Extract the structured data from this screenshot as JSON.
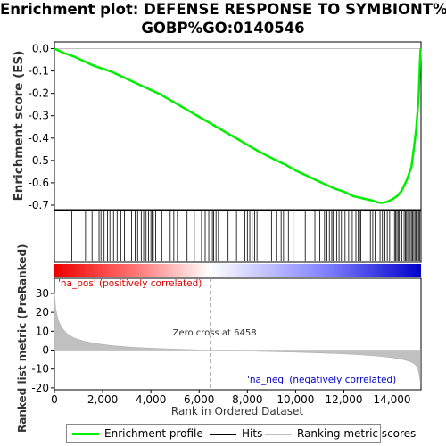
{
  "chart_data": {
    "type": "line",
    "title_line1": "Enrichment plot: DEFENSE RESPONSE TO SYMBIONT%",
    "title_line2": "GOBP%GO:0140546",
    "es_panel": {
      "ylabel": "Enrichment score (ES)",
      "ylim": [
        -0.72,
        0.03
      ],
      "yticks": [
        "0.0",
        "-0.1",
        "-0.2",
        "-0.3",
        "-0.4",
        "-0.5",
        "-0.6",
        "-0.7"
      ],
      "ytick_values": [
        0.0,
        -0.1,
        -0.2,
        -0.3,
        -0.4,
        -0.5,
        -0.6,
        -0.7
      ],
      "series": [
        {
          "name": "Enrichment profile",
          "color": "#00ee00",
          "x": [
            0,
            400,
            800,
            1200,
            1600,
            2000,
            2400,
            2800,
            3200,
            3600,
            4000,
            4400,
            4800,
            5200,
            5600,
            6000,
            6400,
            6800,
            7200,
            7600,
            8000,
            8400,
            8800,
            9200,
            9600,
            10000,
            10400,
            10800,
            11200,
            11600,
            12000,
            12400,
            12600,
            12800,
            13200,
            13400,
            13600,
            13800,
            14000,
            14200,
            14400,
            14600,
            14800,
            14900,
            15000,
            15100,
            15150,
            15180
          ],
          "y": [
            0.0,
            -0.02,
            -0.035,
            -0.055,
            -0.075,
            -0.09,
            -0.105,
            -0.125,
            -0.145,
            -0.165,
            -0.185,
            -0.205,
            -0.23,
            -0.255,
            -0.28,
            -0.305,
            -0.33,
            -0.355,
            -0.38,
            -0.405,
            -0.43,
            -0.455,
            -0.478,
            -0.5,
            -0.52,
            -0.545,
            -0.565,
            -0.585,
            -0.605,
            -0.625,
            -0.64,
            -0.66,
            -0.665,
            -0.67,
            -0.68,
            -0.688,
            -0.69,
            -0.685,
            -0.675,
            -0.66,
            -0.635,
            -0.59,
            -0.53,
            -0.45,
            -0.36,
            -0.22,
            -0.08,
            0.0
          ]
        }
      ]
    },
    "hits": {
      "name": "Hits",
      "positions": [
        720,
        1290,
        1560,
        1850,
        1930,
        2060,
        2200,
        2300,
        2450,
        2600,
        2750,
        2900,
        3050,
        3200,
        3350,
        3450,
        3600,
        3700,
        3800,
        3900,
        4000,
        4050,
        4100,
        4200,
        4450,
        4800,
        4950,
        5100,
        5500,
        5800,
        6100,
        6250,
        6400,
        6550,
        6600,
        6700,
        6800,
        7200,
        7550,
        7900,
        8000,
        8100,
        8200,
        8300,
        8400,
        9000,
        9200,
        9400,
        9500,
        9700,
        9900,
        10400,
        10600,
        10800,
        11000,
        11200,
        11300,
        11400,
        11500,
        11550,
        11700,
        11800,
        11900,
        12050,
        12200,
        12350,
        12500,
        12600,
        12650,
        12700,
        13000,
        13100,
        13200,
        13300,
        13500,
        13600,
        13700,
        13800,
        13900,
        14000,
        14100,
        14150,
        14200,
        14250,
        14300,
        14400,
        14500,
        14550,
        14600,
        14650,
        14700,
        14750,
        14800,
        14850,
        14900,
        14950,
        15000,
        15050,
        15100,
        15150
      ]
    },
    "rank_panel": {
      "ylabel": "Ranked list metric (PreRanked)",
      "ylim": [
        -21,
        38
      ],
      "yticks": [
        "30",
        "20",
        "10",
        "0",
        "-10",
        "-20"
      ],
      "ytick_values": [
        30,
        20,
        10,
        0,
        -10,
        -20
      ],
      "series": [
        {
          "name": "Ranking metric scores",
          "color": "#c0c0c0",
          "x": [
            0,
            50,
            150,
            300,
            500,
            800,
            1200,
            1700,
            2300,
            3000,
            3800,
            4600,
            5400,
            6000,
            6458,
            7000,
            8000,
            9000,
            10000,
            11000,
            12000,
            12800,
            13500,
            14000,
            14400,
            14700,
            14900,
            15050,
            15120,
            15180
          ],
          "y": [
            30,
            22,
            16,
            12,
            9,
            6.5,
            4.8,
            3.5,
            2.5,
            1.7,
            1.1,
            0.7,
            0.35,
            0.12,
            0.0,
            -0.2,
            -0.5,
            -0.8,
            -1.1,
            -1.5,
            -2.0,
            -2.6,
            -3.3,
            -4.0,
            -4.8,
            -5.8,
            -7.0,
            -9.0,
            -12.5,
            -18
          ]
        }
      ],
      "zero_cross_label": "Zero cross at 6458",
      "zero_cross": 6458,
      "pos_label": "'na_pos' (positively correlated)",
      "neg_label": "'na_neg' (negatively correlated)",
      "pos_color": "#dd0000",
      "neg_color": "#0000cc"
    },
    "xaxis": {
      "xlabel": "Rank in Ordered Dataset",
      "xlim": [
        0,
        15200
      ],
      "xticks": [
        "0",
        "2,000",
        "4,000",
        "6,000",
        "8,000",
        "10,000",
        "12,000",
        "14,000"
      ],
      "xtick_values": [
        0,
        2000,
        4000,
        6000,
        8000,
        10000,
        12000,
        14000
      ]
    },
    "legend": [
      {
        "label": "Enrichment profile",
        "color": "#00ee00"
      },
      {
        "label": "Hits",
        "color": "#000000"
      },
      {
        "label": "Ranking metric scores",
        "color": "#c0c0c0"
      }
    ],
    "legend_placement": "bottom"
  }
}
